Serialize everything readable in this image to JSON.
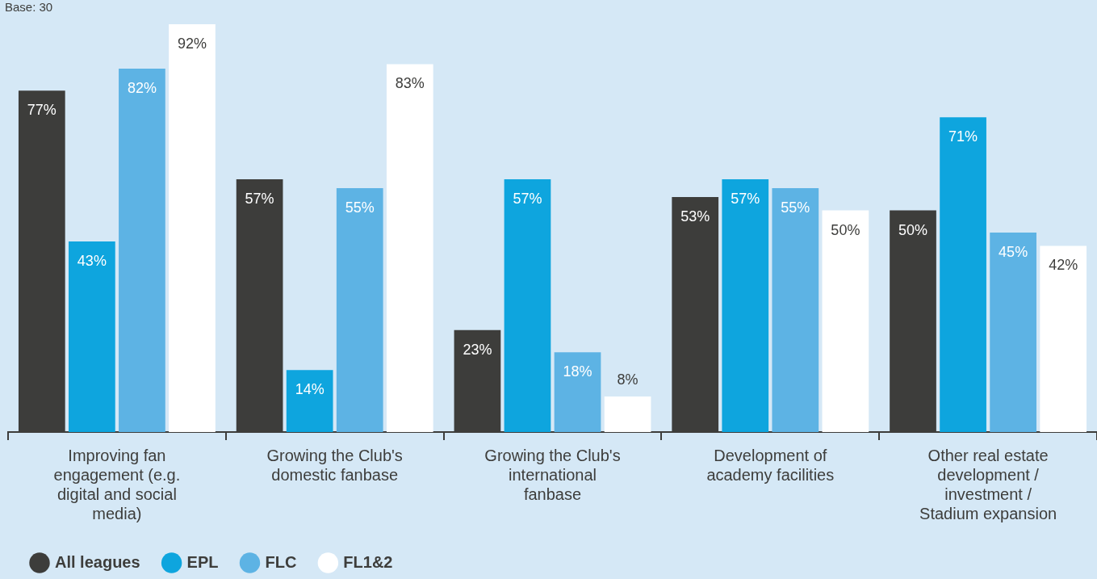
{
  "chart_data": {
    "type": "bar",
    "annotations": [
      "Base: 30"
    ],
    "categories": [
      "Improving fan engagement (e.g. digital and social media)",
      "Growing the Club's domestic fanbase",
      "Growing the Club's international fanbase",
      "Development of academy facilities",
      "Other real estate development / investment / Stadium expansion"
    ],
    "series": [
      {
        "name": "All leagues",
        "color": "#3d3d3b",
        "values": [
          77,
          57,
          23,
          53,
          50
        ],
        "value_labels": [
          "77%",
          "57%",
          "23%",
          "53%",
          "50%"
        ]
      },
      {
        "name": "EPL",
        "color": "#0ea5de",
        "values": [
          43,
          14,
          57,
          57,
          71
        ],
        "value_labels": [
          "43%",
          "14%",
          "57%",
          "57%",
          "71%"
        ]
      },
      {
        "name": "FLC",
        "color": "#5db3e4",
        "values": [
          82,
          55,
          18,
          55,
          45
        ],
        "value_labels": [
          "82%",
          "55%",
          "18%",
          "55%",
          "45%"
        ]
      },
      {
        "name": "FL1&2",
        "color": "#ffffff",
        "values": [
          92,
          83,
          8,
          50,
          42
        ],
        "value_labels": [
          "92%",
          "83%",
          "8%",
          "50%",
          "42%"
        ]
      }
    ],
    "legend": "bottom left",
    "grid": false
  }
}
